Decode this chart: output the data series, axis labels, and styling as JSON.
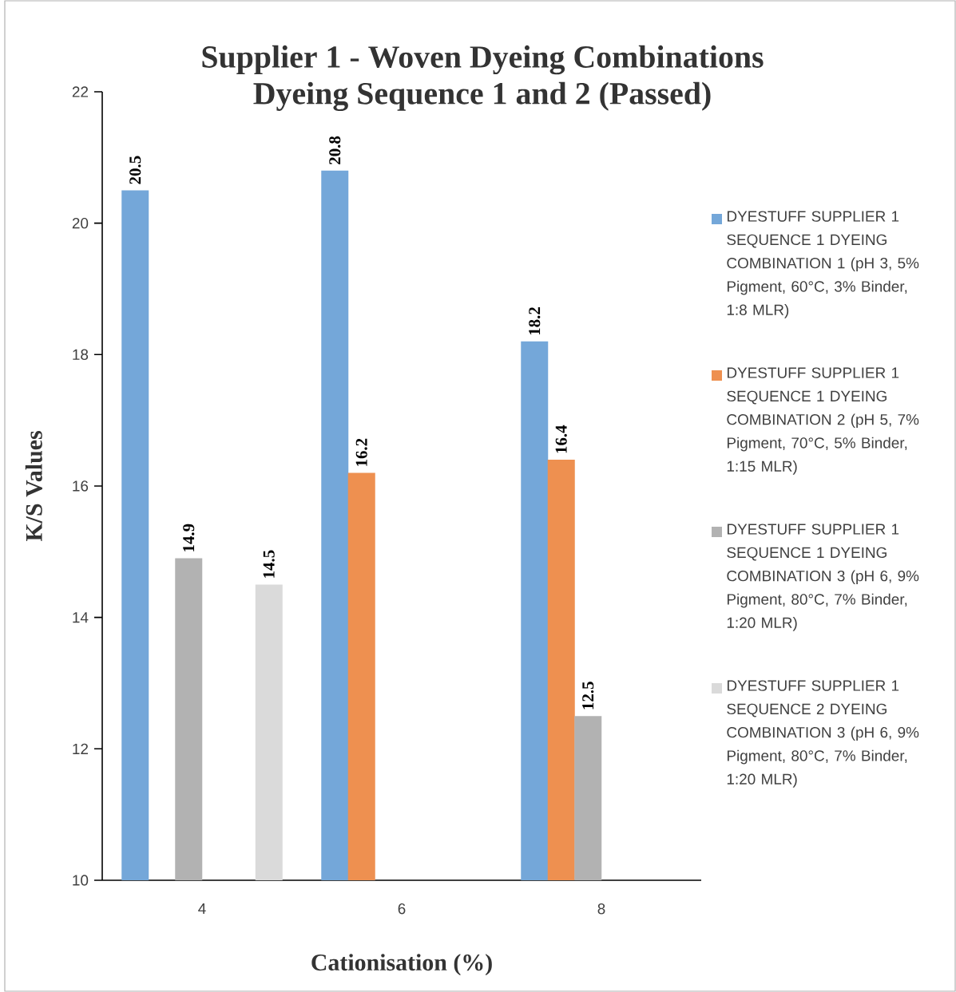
{
  "chart_data": {
    "type": "bar",
    "title": "Supplier 1 - Woven Dyeing Combinations",
    "subtitle": "Dyeing Sequence 1 and 2 (Passed)",
    "xlabel": "Cationisation (%)",
    "ylabel": "K/S Values",
    "categories": [
      "4",
      "6",
      "8"
    ],
    "ylim": [
      10,
      22
    ],
    "yticks": [
      10,
      12,
      14,
      16,
      18,
      20,
      22
    ],
    "data_labels": true,
    "legend": "right",
    "series": [
      {
        "name": "DYESTUFF SUPPLIER 1 SEQUENCE 1 DYEING COMBINATION 1 (pH 3, 5% Pigment, 60°C, 3% Binder, 1:8 MLR)",
        "color": "#74a7d9",
        "values": [
          20.5,
          20.8,
          18.2
        ]
      },
      {
        "name": "DYESTUFF SUPPLIER 1 SEQUENCE 1 DYEING COMBINATION 2 (pH 5, 7% Pigment, 70°C, 5% Binder, 1:15 MLR)",
        "color": "#ee9050",
        "values": [
          null,
          16.2,
          16.4
        ]
      },
      {
        "name": "DYESTUFF SUPPLIER 1 SEQUENCE 1 DYEING COMBINATION 3 (pH 6, 9% Pigment, 80°C, 7% Binder, 1:20 MLR)",
        "color": "#b2b2b2",
        "values": [
          14.9,
          null,
          12.5
        ]
      },
      {
        "name": "DYESTUFF SUPPLIER 1 SEQUENCE 2 DYEING COMBINATION 3 (pH 6, 9% Pigment, 80°C, 7% Binder, 1:20 MLR)",
        "color": "#dadada",
        "values": [
          14.5,
          null,
          null
        ]
      }
    ]
  }
}
